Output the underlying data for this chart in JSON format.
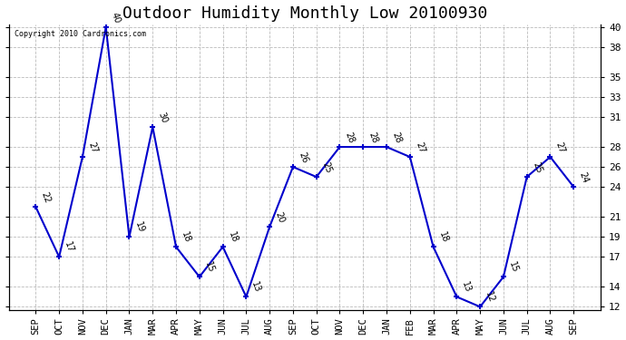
{
  "title": "Outdoor Humidity Monthly Low 20100930",
  "categories": [
    "SEP",
    "OCT",
    "NOV",
    "DEC",
    "JAN",
    "MAR",
    "APR",
    "MAY",
    "JUN",
    "JUL",
    "AUG",
    "SEP",
    "OCT",
    "NOV",
    "DEC",
    "JAN",
    "FEB",
    "MAR",
    "APR",
    "MAY",
    "JUN",
    "JUL",
    "AUG",
    "SEP"
  ],
  "values": [
    22,
    17,
    27,
    40,
    19,
    30,
    18,
    15,
    18,
    13,
    20,
    26,
    25,
    28,
    28,
    28,
    27,
    18,
    13,
    12,
    15,
    25,
    27,
    24
  ],
  "line_color": "#0000cc",
  "marker_color": "#0000cc",
  "bg_color": "#ffffff",
  "grid_color": "#aaaaaa",
  "ylim_min": 12,
  "ylim_max": 40,
  "yticks": [
    12,
    14,
    17,
    19,
    21,
    24,
    26,
    28,
    31,
    33,
    35,
    38,
    40
  ],
  "copyright_text": "Copyright 2010 Cardronics.com",
  "title_fontsize": 13,
  "label_fontsize": 7
}
